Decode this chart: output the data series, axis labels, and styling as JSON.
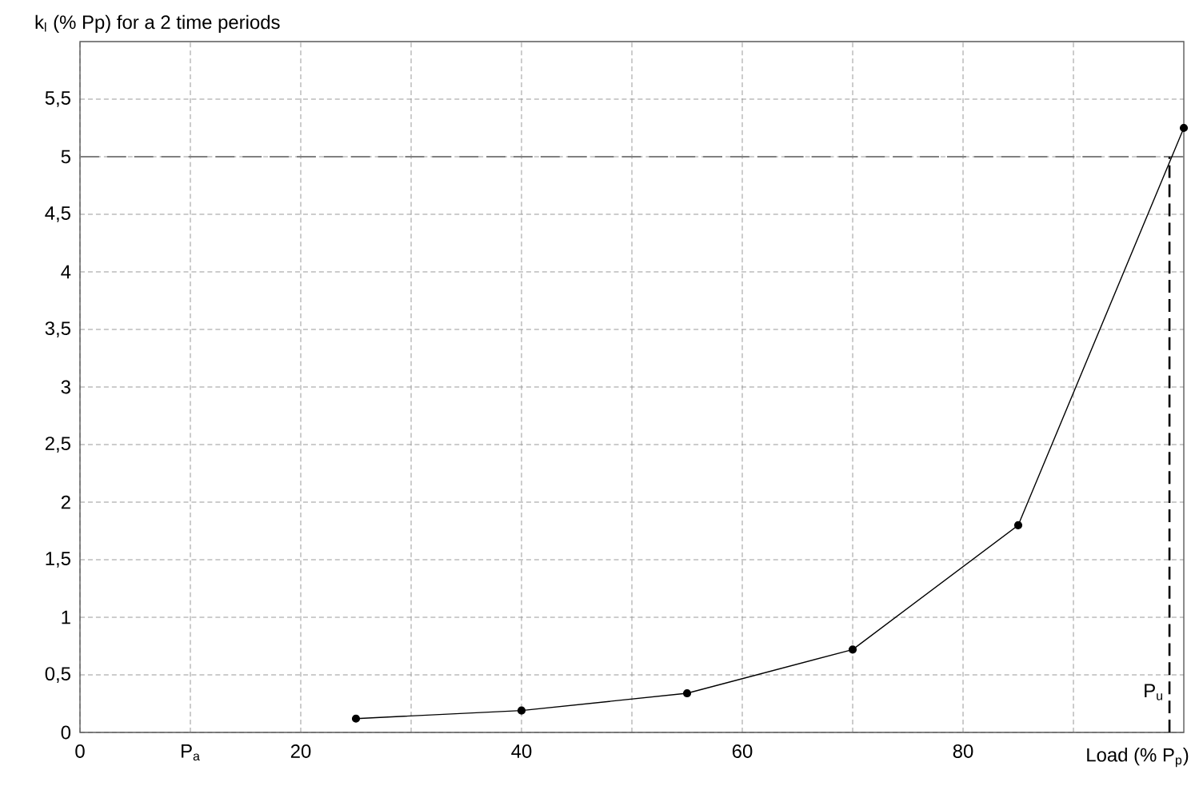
{
  "chart_data": {
    "type": "line",
    "ylabel": "k$_{l}$ (% Pp) for a 2 time periods",
    "xlabel": "Load (% P$_{p}$)",
    "x": [
      25,
      40,
      55,
      70,
      85,
      100
    ],
    "series": [
      {
        "color": "#000000",
        "values": [
          0.12,
          0.19,
          0.34,
          0.72,
          1.8,
          5.25
        ]
      }
    ],
    "xlim": [
      0,
      100
    ],
    "xticks": [
      0,
      {
        "value": 10,
        "label": "P$_{a}$"
      },
      20,
      {
        "value": 30,
        "label": null
      },
      40,
      {
        "value": 50,
        "label": null
      },
      60,
      {
        "value": 70,
        "label": null
      },
      80,
      {
        "value": 90,
        "label": null
      }
    ],
    "ylim": [
      0,
      6
    ],
    "yticks": [
      0,
      {
        "value": 0.5,
        "label": "0,5"
      },
      1,
      {
        "value": 1.5,
        "label": "1,5"
      },
      2,
      {
        "value": 2.5,
        "label": "2,5"
      },
      3,
      {
        "value": 3.5,
        "label": "3,5"
      },
      4,
      {
        "value": 4.5,
        "label": "4,5"
      },
      5,
      {
        "value": 5.5,
        "label": "5,5"
      }
    ],
    "ref_lines": [
      {
        "axis": "y",
        "value": 5,
        "color": "#808080",
        "line_style": "dashed"
      },
      {
        "axis": "x",
        "value": 98.7,
        "label": "P$_{u}$",
        "color": "#000000",
        "line_style": "dashed"
      }
    ],
    "grid": true,
    "marker": "circle",
    "line_style": "solid"
  }
}
